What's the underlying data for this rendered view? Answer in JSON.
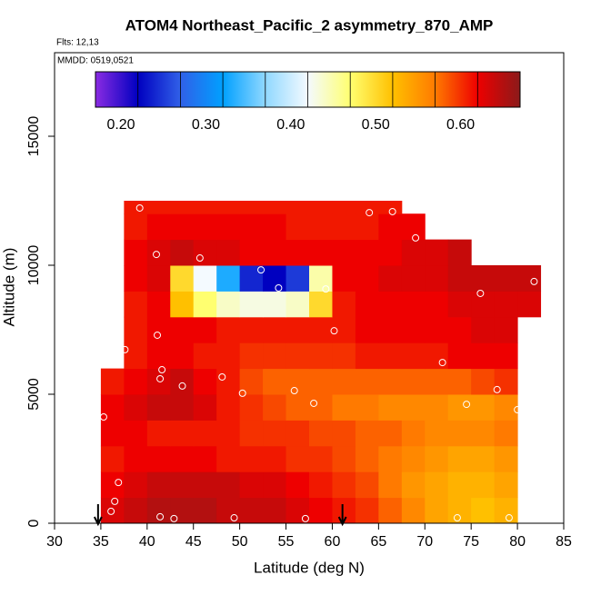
{
  "chart_data": {
    "type": "heatmap",
    "title": "ATOM4 Northeast_Pacific_2 asymmetry_870_AMP",
    "flights": "Flts: 12,13",
    "dates": "MMDD: 0519,0521",
    "xlabel": "Latitude (deg N)",
    "ylabel": "Altitude (m)",
    "xlim": [
      30,
      85
    ],
    "ylim": [
      0,
      18240
    ],
    "xticks": [
      30,
      35,
      40,
      45,
      50,
      55,
      60,
      65,
      70,
      75,
      80,
      85
    ],
    "yticks": [
      0,
      5000,
      10000,
      15000
    ],
    "x_edges": [
      35,
      37.5,
      40,
      42.5,
      45,
      47.5,
      50,
      52.5,
      55,
      57.5,
      60,
      62.5,
      65,
      67.5,
      70,
      72.5,
      75,
      77.5,
      80,
      82.5
    ],
    "y_edges": [
      0,
      1000,
      2000,
      3000,
      4000,
      5000,
      6000,
      7000,
      8000,
      9000,
      10000,
      11000,
      12000,
      12500
    ],
    "z": [
      [
        0.63,
        0.64,
        0.65,
        0.65,
        0.65,
        0.64,
        0.64,
        0.64,
        0.63,
        0.62,
        0.61,
        0.6,
        0.58,
        0.56,
        0.54,
        0.53,
        0.52,
        0.53,
        null
      ],
      [
        0.62,
        0.63,
        0.64,
        0.64,
        0.64,
        0.64,
        0.63,
        0.63,
        0.62,
        0.61,
        0.6,
        0.59,
        0.57,
        0.55,
        0.54,
        0.53,
        0.53,
        0.54,
        null
      ],
      [
        0.61,
        0.62,
        0.62,
        0.62,
        0.62,
        0.61,
        0.61,
        0.61,
        0.6,
        0.6,
        0.59,
        0.58,
        0.57,
        0.56,
        0.55,
        0.54,
        0.54,
        0.55,
        null
      ],
      [
        0.62,
        0.62,
        0.61,
        0.61,
        0.61,
        0.61,
        0.6,
        0.6,
        0.6,
        0.59,
        0.59,
        0.58,
        0.58,
        0.57,
        0.56,
        0.56,
        0.56,
        0.57,
        null
      ],
      [
        0.62,
        0.63,
        0.64,
        0.64,
        0.63,
        0.61,
        0.6,
        0.59,
        0.58,
        0.58,
        0.57,
        0.57,
        0.56,
        0.56,
        0.56,
        0.55,
        0.55,
        0.56,
        null
      ],
      [
        0.61,
        0.62,
        0.63,
        0.64,
        0.62,
        0.61,
        0.59,
        0.58,
        0.58,
        0.58,
        0.58,
        0.58,
        0.58,
        0.58,
        0.58,
        0.58,
        0.59,
        0.6,
        null
      ],
      [
        null,
        0.61,
        0.62,
        0.62,
        0.61,
        0.61,
        0.6,
        0.6,
        0.6,
        0.6,
        0.6,
        0.61,
        0.61,
        0.61,
        0.61,
        0.62,
        0.62,
        0.62,
        null
      ],
      [
        null,
        0.61,
        0.62,
        0.62,
        0.62,
        0.61,
        0.61,
        0.61,
        0.61,
        0.61,
        0.61,
        0.62,
        0.62,
        0.62,
        0.62,
        0.62,
        0.63,
        0.63,
        null
      ],
      [
        null,
        0.61,
        0.62,
        0.52,
        0.47,
        0.44,
        0.43,
        0.43,
        0.44,
        0.5,
        0.61,
        0.62,
        0.62,
        0.62,
        0.62,
        0.63,
        0.63,
        0.63,
        0.63
      ],
      [
        null,
        0.62,
        0.63,
        0.5,
        0.42,
        0.33,
        0.24,
        0.22,
        0.25,
        0.45,
        0.62,
        0.62,
        0.63,
        0.63,
        0.63,
        0.64,
        0.64,
        0.64,
        0.64
      ],
      [
        null,
        0.62,
        0.63,
        0.64,
        0.63,
        0.63,
        0.62,
        0.62,
        0.62,
        0.62,
        0.62,
        0.62,
        0.62,
        0.63,
        0.63,
        0.64,
        null,
        null,
        null
      ],
      [
        null,
        0.61,
        0.62,
        0.62,
        0.62,
        0.62,
        0.62,
        0.62,
        0.61,
        0.61,
        0.61,
        0.61,
        0.62,
        0.62,
        null,
        null,
        null,
        null,
        null
      ],
      [
        null,
        0.61,
        0.61,
        0.61,
        0.61,
        0.61,
        0.61,
        0.61,
        0.61,
        0.61,
        0.61,
        0.61,
        0.61,
        null,
        null,
        null,
        null,
        null,
        null
      ]
    ],
    "points_x": [
      39.2,
      64,
      66.5,
      69,
      41,
      45.7,
      52.3,
      54.2,
      59.3,
      76,
      81.8,
      60.2,
      41.1,
      37.6,
      71.9,
      41.6,
      41.4,
      48.1,
      43.8,
      55.9,
      50.3,
      58,
      77.8,
      74.5,
      80,
      35.3,
      36.9,
      36.5,
      36.1,
      41.4,
      42.9,
      49.4,
      57.1,
      73.5,
      79.1
    ],
    "points_y": [
      12220,
      12040,
      12080,
      11060,
      10420,
      10280,
      9820,
      9120,
      9080,
      8910,
      9370,
      7460,
      7290,
      6730,
      6230,
      5950,
      5600,
      5670,
      5320,
      5140,
      5040,
      4650,
      5180,
      4610,
      4400,
      4120,
      1580,
      850,
      460,
      250,
      180,
      210,
      180,
      210,
      210
    ],
    "arrows_x": [
      34.7,
      61.1
    ],
    "zlim": [
      0.17,
      0.67
    ],
    "zticks": [
      {
        "value": 0.2,
        "label": "0.20"
      },
      {
        "value": 0.3,
        "label": "0.30"
      },
      {
        "value": 0.4,
        "label": "0.40"
      },
      {
        "value": 0.5,
        "label": "0.50"
      },
      {
        "value": 0.6,
        "label": "0.60"
      }
    ],
    "colormap": [
      "#8a2be2",
      "#0000c0",
      "#3060e8",
      "#00a0ff",
      "#90d8ff",
      "#f4faff",
      "#ffff70",
      "#ffc000",
      "#ff7a00",
      "#ee0000",
      "#8b1a1a"
    ]
  }
}
